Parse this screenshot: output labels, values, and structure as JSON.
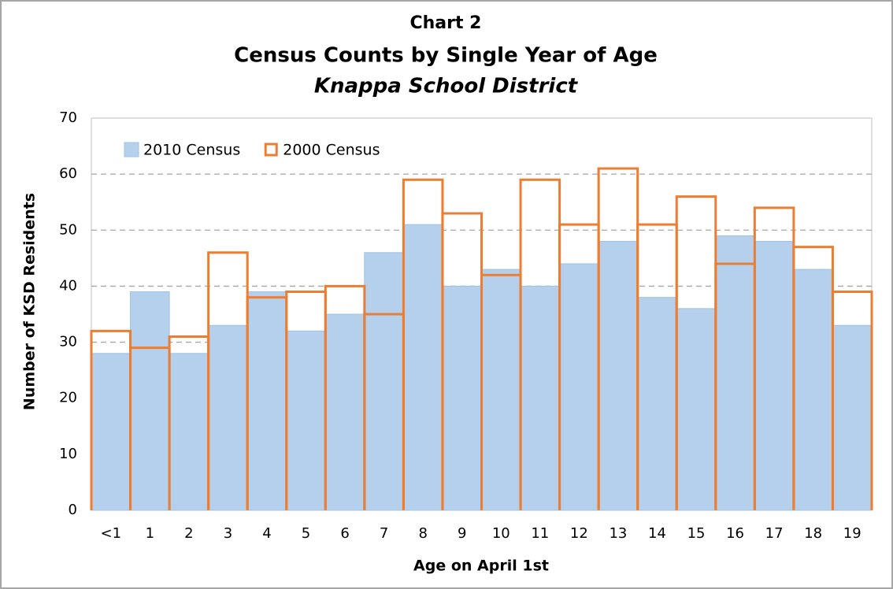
{
  "chart_data": {
    "type": "bar",
    "title": "Chart 2",
    "subtitle": "Census Counts by Single Year of Age",
    "subtitle2": "Knappa School District",
    "x_label": "Age on April 1st",
    "y_label": "Number of KSD Residents",
    "categories": [
      "<1",
      "1",
      "2",
      "3",
      "4",
      "5",
      "6",
      "7",
      "8",
      "9",
      "10",
      "11",
      "12",
      "13",
      "14",
      "15",
      "16",
      "17",
      "18",
      "19"
    ],
    "series": [
      {
        "name": "2010 Census",
        "color": "#b5d0ec",
        "outline_only": false,
        "values": [
          28,
          39,
          28,
          33,
          39,
          32,
          35,
          46,
          51,
          40,
          43,
          40,
          44,
          48,
          38,
          36,
          49,
          48,
          43,
          33
        ]
      },
      {
        "name": "2000 Census",
        "color": "#ed7d31",
        "outline_only": true,
        "values": [
          32,
          29,
          31,
          46,
          38,
          39,
          40,
          35,
          59,
          53,
          42,
          59,
          51,
          61,
          51,
          56,
          44,
          54,
          47,
          39
        ]
      }
    ],
    "ylim": [
      0,
      70
    ],
    "yticks": [
      0,
      10,
      20,
      30,
      40,
      50,
      60,
      70
    ],
    "grid": true,
    "legend": "upper left"
  }
}
